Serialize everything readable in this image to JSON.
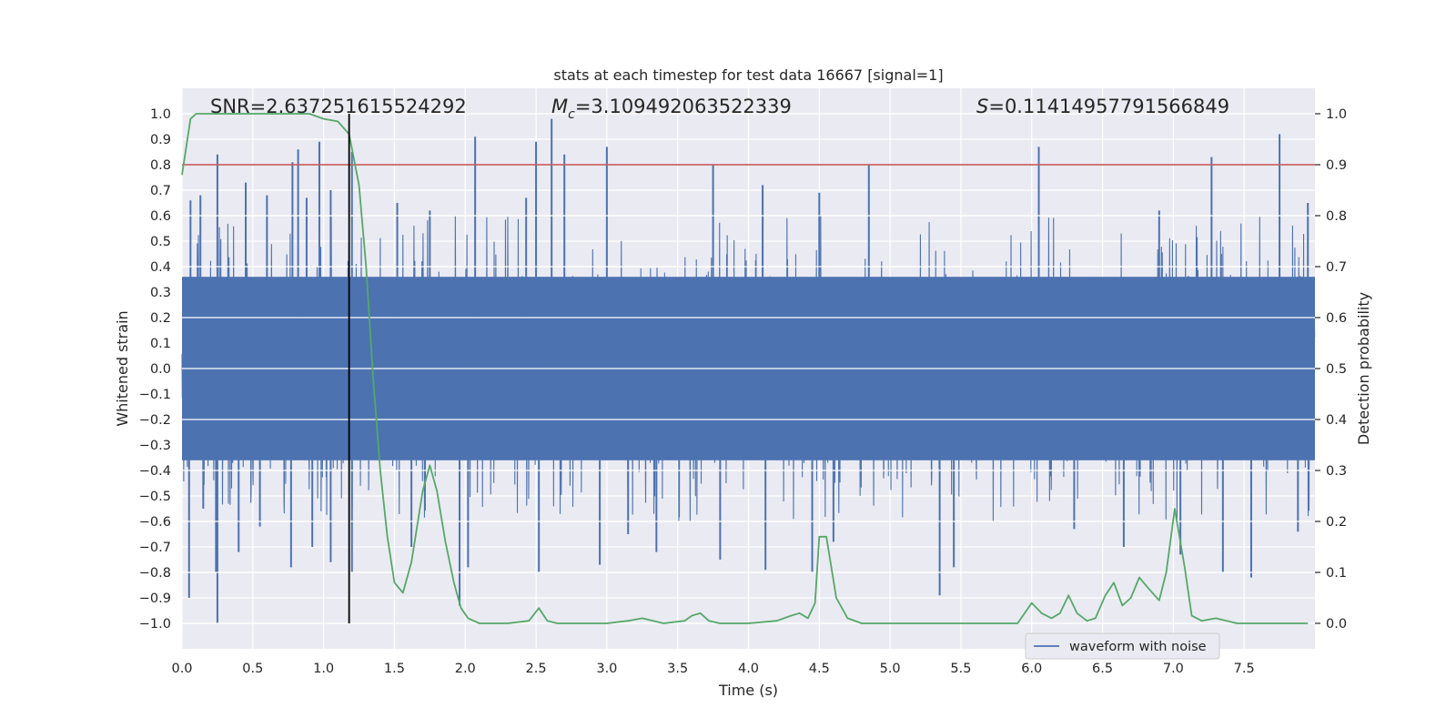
{
  "chart_data": {
    "type": "line",
    "title": "stats at each timestep for test data 16667 [signal=1]",
    "xlabel": "Time (s)",
    "ylabel": "Whitened strain",
    "y2label": "Detection probability",
    "xlim": [
      0.0,
      8.0
    ],
    "ylim": [
      -1.1,
      1.1
    ],
    "y2lim": [
      -0.05,
      1.05
    ],
    "xticks": [
      "0.0",
      "0.5",
      "1.0",
      "1.5",
      "2.0",
      "2.5",
      "3.0",
      "3.5",
      "4.0",
      "4.5",
      "5.0",
      "5.5",
      "6.0",
      "6.5",
      "7.0",
      "7.5"
    ],
    "xtick_values": [
      0.0,
      0.5,
      1.0,
      1.5,
      2.0,
      2.5,
      3.0,
      3.5,
      4.0,
      4.5,
      5.0,
      5.5,
      6.0,
      6.5,
      7.0,
      7.5
    ],
    "yticks": [
      "1.0",
      "0.9",
      "0.8",
      "0.7",
      "0.6",
      "0.5",
      "0.4",
      "0.3",
      "0.2",
      "0.1",
      "0.0",
      "−0.1",
      "−0.2",
      "−0.3",
      "−0.4",
      "−0.5",
      "−0.6",
      "−0.7",
      "−0.8",
      "−0.9",
      "−1.0"
    ],
    "ytick_values": [
      1.0,
      0.9,
      0.8,
      0.7,
      0.6,
      0.5,
      0.4,
      0.3,
      0.2,
      0.1,
      0.0,
      -0.1,
      -0.2,
      -0.3,
      -0.4,
      -0.5,
      -0.6,
      -0.7,
      -0.8,
      -0.9,
      -1.0
    ],
    "y2ticks": [
      "1.0",
      "0.9",
      "0.8",
      "0.7",
      "0.6",
      "0.5",
      "0.4",
      "0.3",
      "0.2",
      "0.1",
      "0.0"
    ],
    "y2tick_values": [
      1.0,
      0.9,
      0.8,
      0.7,
      0.6,
      0.5,
      0.4,
      0.3,
      0.2,
      0.1,
      0.0
    ],
    "annotations": {
      "snr": "SNR=2.637251615524292",
      "mc_symbol": "M",
      "mc_sub": "c",
      "mc_value": "=3.109492063522339",
      "s_symbol": "S",
      "s_value": "=0.11414957791566849"
    },
    "legend": {
      "label": "waveform with noise",
      "position": "lower-right"
    },
    "waveform": {
      "name": "waveform with noise",
      "envelope_description": "dense noise roughly within [-0.4, 0.4] with spikes up to ~0.98 and down to ~-1.0",
      "upper_spikes": [
        [
          0.06,
          0.66
        ],
        [
          0.13,
          0.68
        ],
        [
          0.25,
          0.84
        ],
        [
          0.45,
          0.73
        ],
        [
          0.6,
          0.68
        ],
        [
          0.78,
          0.81
        ],
        [
          0.82,
          0.86
        ],
        [
          0.88,
          0.67
        ],
        [
          0.97,
          0.89
        ],
        [
          1.05,
          0.7
        ],
        [
          1.2,
          0.85
        ],
        [
          1.52,
          0.65
        ],
        [
          1.75,
          0.62
        ],
        [
          2.07,
          0.91
        ],
        [
          2.43,
          0.67
        ],
        [
          2.5,
          0.89
        ],
        [
          2.61,
          0.98
        ],
        [
          2.7,
          0.84
        ],
        [
          3.0,
          0.87
        ],
        [
          3.75,
          0.8
        ],
        [
          4.1,
          0.72
        ],
        [
          4.5,
          0.69
        ],
        [
          4.85,
          0.8
        ],
        [
          6.05,
          0.87
        ],
        [
          6.9,
          0.62
        ],
        [
          7.27,
          0.83
        ],
        [
          7.75,
          0.92
        ],
        [
          7.95,
          0.65
        ]
      ],
      "lower_spikes": [
        [
          0.05,
          -0.9
        ],
        [
          0.15,
          -0.55
        ],
        [
          0.24,
          -0.8
        ],
        [
          0.25,
          -1.0
        ],
        [
          0.4,
          -0.72
        ],
        [
          0.55,
          -0.62
        ],
        [
          0.77,
          -0.78
        ],
        [
          0.92,
          -0.7
        ],
        [
          1.05,
          -0.76
        ],
        [
          1.2,
          -0.8
        ],
        [
          1.62,
          -0.7
        ],
        [
          1.96,
          -0.93
        ],
        [
          2.02,
          -0.78
        ],
        [
          2.52,
          -0.8
        ],
        [
          2.95,
          -0.77
        ],
        [
          3.15,
          -0.65
        ],
        [
          3.35,
          -0.72
        ],
        [
          3.8,
          -0.75
        ],
        [
          4.12,
          -0.79
        ],
        [
          4.45,
          -0.8
        ],
        [
          4.6,
          -0.68
        ],
        [
          5.35,
          -0.89
        ],
        [
          5.45,
          -0.78
        ],
        [
          6.3,
          -0.63
        ],
        [
          6.65,
          -0.7
        ],
        [
          7.05,
          -0.73
        ],
        [
          7.35,
          -0.8
        ],
        [
          7.55,
          -0.82
        ],
        [
          7.88,
          -0.64
        ]
      ]
    },
    "probability": {
      "name": "detection probability",
      "x": [
        0.0,
        0.06,
        0.1,
        0.3,
        0.5,
        0.7,
        0.9,
        1.0,
        1.1,
        1.18,
        1.25,
        1.3,
        1.35,
        1.4,
        1.45,
        1.5,
        1.56,
        1.62,
        1.7,
        1.75,
        1.8,
        1.86,
        1.92,
        1.97,
        2.02,
        2.1,
        2.2,
        2.3,
        2.45,
        2.52,
        2.58,
        2.65,
        2.8,
        3.0,
        3.15,
        3.25,
        3.4,
        3.55,
        3.6,
        3.66,
        3.72,
        3.8,
        4.0,
        4.2,
        4.3,
        4.36,
        4.42,
        4.47,
        4.5,
        4.55,
        4.62,
        4.7,
        4.8,
        5.0,
        5.5,
        5.9,
        6.0,
        6.07,
        6.14,
        6.2,
        6.26,
        6.32,
        6.39,
        6.45,
        6.52,
        6.58,
        6.64,
        6.7,
        6.76,
        6.82,
        6.9,
        6.95,
        7.01,
        7.08,
        7.13,
        7.2,
        7.3,
        7.45,
        7.7,
        7.9,
        7.95
      ],
      "y": [
        0.88,
        0.99,
        1.0,
        1.0,
        1.0,
        1.0,
        1.0,
        0.99,
        0.985,
        0.96,
        0.86,
        0.7,
        0.48,
        0.3,
        0.17,
        0.08,
        0.06,
        0.12,
        0.26,
        0.31,
        0.26,
        0.16,
        0.08,
        0.03,
        0.01,
        0.0,
        0.0,
        0.0,
        0.005,
        0.03,
        0.005,
        0.0,
        0.0,
        0.0,
        0.005,
        0.01,
        0.0,
        0.005,
        0.015,
        0.02,
        0.005,
        0.0,
        0.0,
        0.005,
        0.015,
        0.02,
        0.01,
        0.04,
        0.17,
        0.17,
        0.05,
        0.01,
        0.0,
        0.0,
        0.0,
        0.0,
        0.04,
        0.02,
        0.01,
        0.02,
        0.055,
        0.02,
        0.005,
        0.01,
        0.055,
        0.08,
        0.035,
        0.05,
        0.09,
        0.07,
        0.045,
        0.1,
        0.225,
        0.11,
        0.015,
        0.005,
        0.01,
        0.0,
        0.0,
        0.0,
        0.0
      ]
    },
    "threshold": {
      "value": 0.9,
      "axis": "right",
      "color": "#c44e52"
    },
    "marker_time": 1.18,
    "colors": {
      "waveform": "#4c72b0",
      "probability": "#55a868",
      "threshold": "#c44e52",
      "marker": "#000000",
      "axes_bg": "#eaeaf2",
      "grid": "#ffffff"
    }
  }
}
